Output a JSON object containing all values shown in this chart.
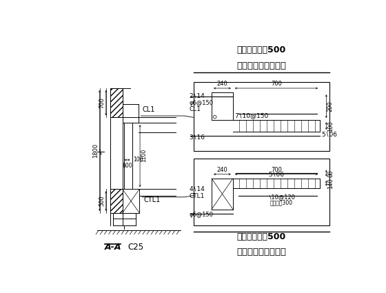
{
  "bg_color": "#ffffff",
  "title_top1": "梁端锚入墙内500",
  "title_top2": "或锚入两端构造柱内",
  "title_bot1": "梁端锚入墙内500",
  "title_bot2": "或锚入两端构造柱内",
  "text_2p14": "2∖14",
  "text_p6at150": "φ6@150",
  "text_CL1_box": "CL1",
  "text_3p16": "3∖16",
  "text_7p10at150": "7∖10@150",
  "text_5p6": "5∖06",
  "text_4p14": "4∖14",
  "text_CTL1_box": "CTL1",
  "text_p6at150b": "φ6@150",
  "text_7p10at120": "∖10@120",
  "text_5p6b": "5∖06",
  "text_anchor300": "钆入梁内300",
  "label_AA": "A-A",
  "label_C25": "C25",
  "label_CL1": "CL1",
  "label_CTL1": "CTL1"
}
